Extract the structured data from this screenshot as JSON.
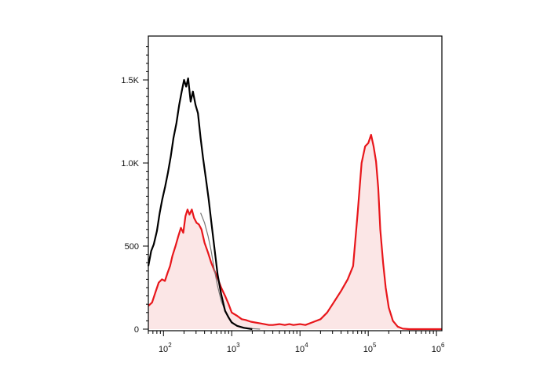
{
  "chart_data": {
    "type": "area",
    "title": "",
    "xlabel": "",
    "ylabel": "",
    "x_scale": "log",
    "xlim": [
      60,
      1200000
    ],
    "ylim": [
      0,
      1750
    ],
    "grid": false,
    "y_ticks": [
      {
        "value": 0,
        "label": "0"
      },
      {
        "value": 500,
        "label": "500"
      },
      {
        "value": 1000,
        "label": "1.0K"
      },
      {
        "value": 1500,
        "label": "1.5K"
      }
    ],
    "x_ticks": [
      {
        "value": 100,
        "base": "10",
        "exp": "2"
      },
      {
        "value": 1000,
        "base": "10",
        "exp": "3"
      },
      {
        "value": 10000,
        "base": "10",
        "exp": "4"
      },
      {
        "value": 100000,
        "base": "10",
        "exp": "5"
      },
      {
        "value": 1000000,
        "base": "10",
        "exp": "6"
      }
    ],
    "series": [
      {
        "color": "#000000",
        "filled": false,
        "points": [
          [
            60,
            380
          ],
          [
            66,
            470
          ],
          [
            72,
            510
          ],
          [
            80,
            590
          ],
          [
            88,
            700
          ],
          [
            96,
            780
          ],
          [
            106,
            860
          ],
          [
            116,
            940
          ],
          [
            128,
            1040
          ],
          [
            140,
            1150
          ],
          [
            155,
            1240
          ],
          [
            170,
            1350
          ],
          [
            185,
            1430
          ],
          [
            200,
            1500
          ],
          [
            215,
            1460
          ],
          [
            230,
            1510
          ],
          [
            250,
            1370
          ],
          [
            270,
            1430
          ],
          [
            295,
            1350
          ],
          [
            320,
            1300
          ],
          [
            350,
            1150
          ],
          [
            380,
            1030
          ],
          [
            420,
            900
          ],
          [
            460,
            780
          ],
          [
            500,
            650
          ],
          [
            560,
            480
          ],
          [
            620,
            330
          ],
          [
            700,
            210
          ],
          [
            800,
            110
          ],
          [
            900,
            70
          ],
          [
            1000,
            40
          ],
          [
            1200,
            20
          ],
          [
            1500,
            8
          ],
          [
            2000,
            0
          ]
        ]
      },
      {
        "color": "#777777",
        "filled": false,
        "points": [
          [
            350,
            700
          ],
          [
            400,
            640
          ],
          [
            450,
            560
          ],
          [
            500,
            470
          ],
          [
            560,
            350
          ],
          [
            620,
            260
          ],
          [
            700,
            170
          ],
          [
            800,
            110
          ],
          [
            900,
            70
          ],
          [
            1000,
            45
          ],
          [
            1200,
            20
          ],
          [
            1500,
            10
          ],
          [
            2000,
            3
          ],
          [
            2600,
            0
          ]
        ]
      },
      {
        "color": "#e8161b",
        "fill": "#fbe6e6",
        "filled": true,
        "points": [
          [
            60,
            140
          ],
          [
            68,
            160
          ],
          [
            76,
            220
          ],
          [
            85,
            280
          ],
          [
            95,
            300
          ],
          [
            105,
            290
          ],
          [
            115,
            340
          ],
          [
            125,
            380
          ],
          [
            135,
            440
          ],
          [
            150,
            500
          ],
          [
            165,
            560
          ],
          [
            180,
            610
          ],
          [
            195,
            580
          ],
          [
            210,
            680
          ],
          [
            225,
            720
          ],
          [
            240,
            690
          ],
          [
            260,
            720
          ],
          [
            280,
            670
          ],
          [
            305,
            640
          ],
          [
            330,
            630
          ],
          [
            360,
            600
          ],
          [
            400,
            520
          ],
          [
            450,
            460
          ],
          [
            500,
            400
          ],
          [
            560,
            350
          ],
          [
            630,
            300
          ],
          [
            700,
            250
          ],
          [
            800,
            200
          ],
          [
            900,
            150
          ],
          [
            1000,
            100
          ],
          [
            1200,
            80
          ],
          [
            1400,
            60
          ],
          [
            1600,
            55
          ],
          [
            1900,
            45
          ],
          [
            2200,
            40
          ],
          [
            2600,
            35
          ],
          [
            3000,
            30
          ],
          [
            3500,
            25
          ],
          [
            4000,
            25
          ],
          [
            5000,
            30
          ],
          [
            6000,
            25
          ],
          [
            7000,
            30
          ],
          [
            8000,
            25
          ],
          [
            10000,
            30
          ],
          [
            12000,
            25
          ],
          [
            15000,
            40
          ],
          [
            20000,
            60
          ],
          [
            25000,
            100
          ],
          [
            30000,
            150
          ],
          [
            40000,
            230
          ],
          [
            50000,
            300
          ],
          [
            60000,
            380
          ],
          [
            70000,
            700
          ],
          [
            80000,
            1000
          ],
          [
            90000,
            1100
          ],
          [
            100000,
            1120
          ],
          [
            110000,
            1170
          ],
          [
            120000,
            1100
          ],
          [
            130000,
            1010
          ],
          [
            140000,
            850
          ],
          [
            150000,
            600
          ],
          [
            165000,
            400
          ],
          [
            180000,
            250
          ],
          [
            200000,
            130
          ],
          [
            230000,
            50
          ],
          [
            270000,
            15
          ],
          [
            320000,
            3
          ],
          [
            400000,
            0
          ],
          [
            1200000,
            0
          ]
        ]
      }
    ]
  }
}
